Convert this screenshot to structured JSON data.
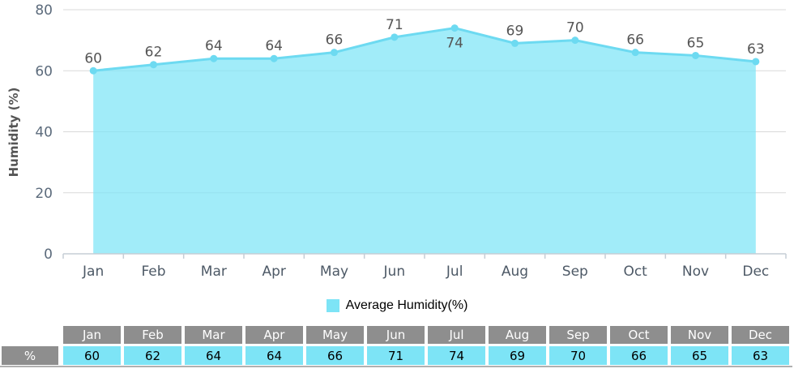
{
  "chart_data": {
    "type": "area",
    "title": "",
    "xlabel": "",
    "ylabel": "Humidity (%)",
    "categories": [
      "Jan",
      "Feb",
      "Mar",
      "Apr",
      "May",
      "Jun",
      "Jul",
      "Aug",
      "Sep",
      "Oct",
      "Nov",
      "Dec"
    ],
    "series": [
      {
        "name": "Average Humidity(%)",
        "values": [
          60,
          62,
          64,
          64,
          66,
          71,
          74,
          69,
          70,
          66,
          65,
          63
        ]
      }
    ],
    "ylim": [
      0,
      80
    ],
    "yticks": [
      0,
      20,
      40,
      60,
      80
    ],
    "grid": true,
    "legend_position": "bottom",
    "data_labels_shown": true,
    "label_below_indices": [
      6
    ]
  },
  "legend": {
    "label": "Average Humidity(%)"
  },
  "table": {
    "row_label": "%",
    "columns": [
      "Jan",
      "Feb",
      "Mar",
      "Apr",
      "May",
      "Jun",
      "Jul",
      "Aug",
      "Sep",
      "Oct",
      "Nov",
      "Dec"
    ],
    "values": [
      "60",
      "62",
      "64",
      "64",
      "66",
      "71",
      "74",
      "69",
      "70",
      "66",
      "65",
      "63"
    ]
  },
  "colors": {
    "accent": "#7de4f6",
    "line": "#6ddaf1",
    "fill_opacity": "0.72",
    "grid": "#d9d9d9",
    "axis": "#c6cdd5",
    "y_tick_label": "#5c6b7c",
    "x_tick_label": "#4d5966",
    "data_label": "#555555",
    "axis_title": "#555555",
    "table_header_bg": "#8e8e8e",
    "table_header_text": "#ffffff",
    "table_value_bg": "#7de4f6",
    "table_value_text": "#000000",
    "table_border": "#b0b0b0"
  }
}
